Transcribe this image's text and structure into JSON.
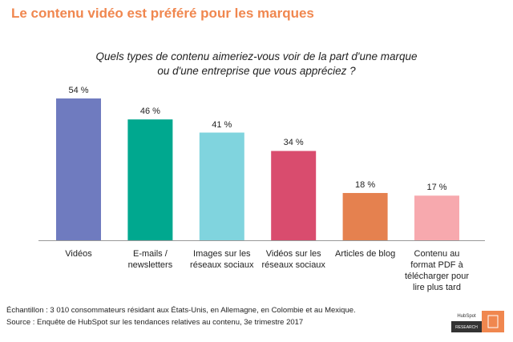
{
  "chart_data": {
    "type": "bar",
    "title": "Le contenu vidéo est préféré pour les marques",
    "subtitle": "Quels types de contenu   aimeriez-vous voir de la part d'une marque\nou d'une entreprise que vous appréciez ?",
    "categories": [
      "Vidéos",
      "E-mails /\nnewsletters",
      "Images sur les\nréseaux sociaux",
      "Vidéos sur les\nréseaux sociaux",
      "Articles de blog",
      "Contenu au\nformat PDF à\ntélécharger pour\nlire plus tard"
    ],
    "values": [
      54,
      46,
      41,
      34,
      18,
      17
    ],
    "value_labels": [
      "54 %",
      "46 %",
      "41 %",
      "34 %",
      "18 %",
      "17 %"
    ],
    "colors": [
      "#6f7bbf",
      "#00a88f",
      "#80d4de",
      "#d94c6e",
      "#e5814f",
      "#f7a9ae"
    ],
    "notes": [
      "Échantillon : 3 010 consommateurs résidant aux États-Unis, en Allemagne, en Colombie et au Mexique.",
      "Source : Enquête de HubSpot sur les tendances relatives au contenu, 3e trimestre 2017"
    ],
    "logo": [
      "HubSpot",
      "RESEARCH"
    ]
  }
}
